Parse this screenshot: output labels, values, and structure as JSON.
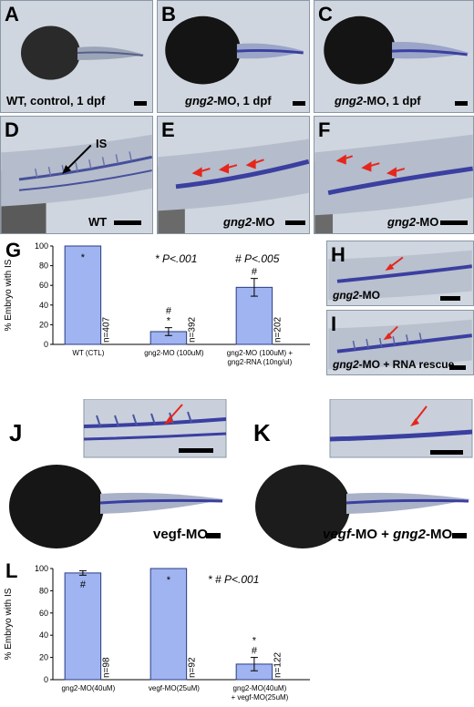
{
  "panels": {
    "A": {
      "label": "A",
      "caption": "WT, control,  1 dpf"
    },
    "B": {
      "label": "B",
      "caption_gene": "gng2",
      "caption_rest": "-MO,  1 dpf"
    },
    "C": {
      "label": "C",
      "caption_gene": "gng2",
      "caption_rest": "-MO,  1 dpf"
    },
    "D": {
      "label": "D",
      "caption": "WT",
      "arrow_label": "IS"
    },
    "E": {
      "label": "E",
      "caption_gene": "gng2",
      "caption_rest": "-MO"
    },
    "F": {
      "label": "F",
      "caption_gene": "gng2",
      "caption_rest": "-MO"
    },
    "H": {
      "label": "H",
      "caption_gene": "gng2",
      "caption_rest": "-MO"
    },
    "I": {
      "label": "I",
      "caption_gene": "gng2",
      "caption_rest": "-MO + RNA rescue"
    },
    "J": {
      "label": "J",
      "caption": "vegf-MO"
    },
    "K": {
      "label": "K",
      "caption_gene1": "vegf",
      "caption_mid": "-MO + ",
      "caption_gene2": "gng2",
      "caption_end": "-MO"
    },
    "G": {
      "label": "G"
    },
    "L": {
      "label": "L"
    }
  },
  "chart_data": [
    {
      "type": "bar",
      "panel": "G",
      "ylabel": "% Embryo with IS",
      "ylim": [
        0,
        100
      ],
      "yticks": [
        0,
        20,
        40,
        60,
        80,
        100
      ],
      "categories": [
        "WT (CTL)",
        "gng2-MO (100uM)",
        "gng2-MO (100uM) + gng2-RNA (10ng/ul)"
      ],
      "values": [
        100,
        13,
        58
      ],
      "errors": [
        0,
        4,
        9
      ],
      "n_labels": [
        "n=407",
        "n=392",
        "n=202"
      ],
      "markers": [
        "*",
        "#\n*",
        "#"
      ],
      "legend": [
        "* P<.001",
        "# P<.005"
      ],
      "bar_color": "#9fb4f0"
    },
    {
      "type": "bar",
      "panel": "L",
      "ylabel": "% Embryo with IS",
      "ylim": [
        0,
        100
      ],
      "yticks": [
        0,
        20,
        40,
        60,
        80,
        100
      ],
      "categories": [
        "gng2-MO(40uM)",
        "vegf-MO(25uM)",
        "gng2-MO(40uM) + vegf-MO(25uM)"
      ],
      "values": [
        96,
        100,
        14
      ],
      "errors": [
        2,
        0,
        6
      ],
      "n_labels": [
        "n=98",
        "n=92",
        "n=122"
      ],
      "markers": [
        "#",
        "*",
        "*\n#"
      ],
      "legend": [
        "* # P<.001"
      ],
      "bar_color": "#9fb4f0"
    }
  ],
  "colors": {
    "embryo_dark": "#1a1a1a",
    "stain": "#3a3fa0",
    "arrow": "#e5261c",
    "panel_bg": "#cfd6df"
  }
}
